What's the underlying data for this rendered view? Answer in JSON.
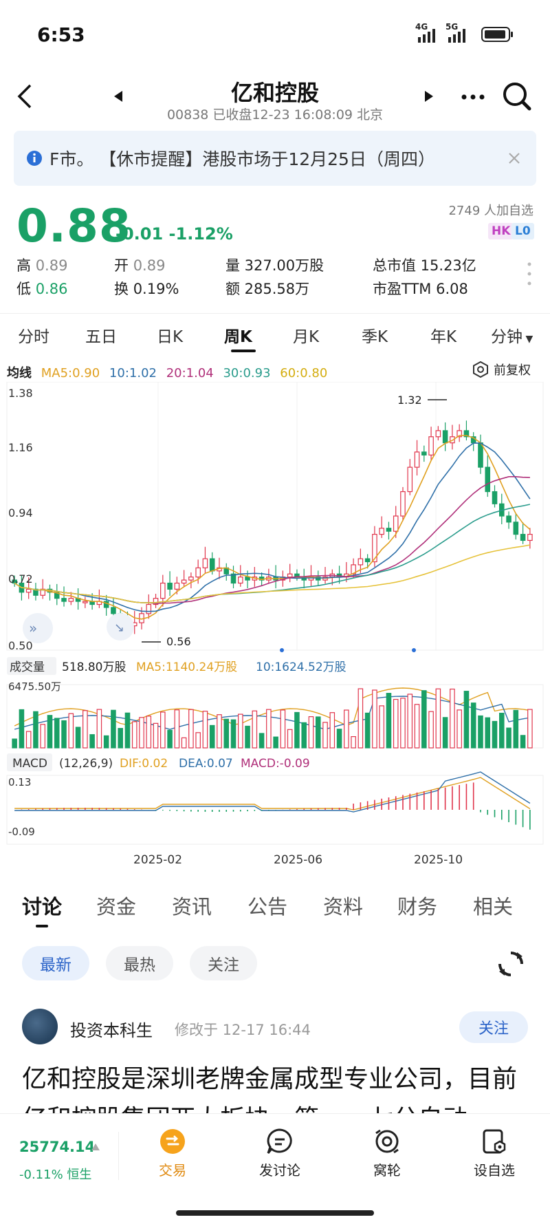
{
  "status_bar": {
    "time": "6:53",
    "net1": "4G",
    "net2": "5G"
  },
  "header": {
    "title": "亿和控股",
    "subtitle": "00838 已收盘12-23 16:08:09 北京"
  },
  "notice": {
    "text": "F市。    【休市提醒】港股市场于12月25日（周四）"
  },
  "quote": {
    "price": "0.88",
    "change": "-0.01 -1.12%",
    "watchers": "2749 人加自选",
    "badge_hk": "HK",
    "badge_l0": "L0",
    "stats": {
      "high_label": "高",
      "high": "0.89",
      "open_label": "开",
      "open": "0.89",
      "volume": "量 327.00万股",
      "market_cap": "总市值 15.23亿",
      "low_label": "低",
      "low": "0.86",
      "turnover_label": "换",
      "turnover": "0.19%",
      "amount": "额 285.58万",
      "pe": "市盈TTM 6.08"
    }
  },
  "kline_tabs": [
    "分时",
    "五日",
    "日K",
    "周K",
    "月K",
    "季K",
    "年K",
    "分钟"
  ],
  "chart": {
    "ma_title": "均线",
    "ma5": "MA5:0.90",
    "ma10": "10:1.02",
    "ma20": "20:1.04",
    "ma30": "30:0.93",
    "ma60": "60:0.80",
    "adjust": "前复权",
    "y_ticks": [
      "1.38",
      "1.16",
      "0.94",
      "0.72",
      "0.50"
    ],
    "max_label": "1.32",
    "min_label": "0.56",
    "volume_title": "成交量",
    "volume_value": "518.80万股",
    "vol_ma5": "MA5:1140.24万股",
    "vol_ma10": "10:1624.52万股",
    "volume_max": "6475.50万",
    "macd_title": "MACD",
    "macd_params": "(12,26,9)",
    "dif": "DIF:0.02",
    "dea": "DEA:0.07",
    "macd": "MACD:-0.09",
    "macd_top": "0.13",
    "macd_bottom": "-0.09",
    "x_labels": [
      "2025-02",
      "2025-06",
      "2025-10"
    ],
    "colors": {
      "up": "#e0344b",
      "down": "#1aa066",
      "ma5": "#e0a020",
      "ma10": "#2e6fa8",
      "ma20": "#b0307a",
      "ma30": "#2a9c8c",
      "ma60": "#e6c23a"
    }
  },
  "chart_data": {
    "type": "candlestick",
    "ylim": [
      0.5,
      1.38
    ],
    "y_ticks": [
      1.38,
      1.16,
      0.94,
      0.72,
      0.5
    ],
    "x_labels": [
      "2025-02",
      "2025-06",
      "2025-10"
    ],
    "high": 1.32,
    "low": 0.56,
    "close": [
      0.72,
      0.69,
      0.7,
      0.68,
      0.7,
      0.69,
      0.67,
      0.66,
      0.67,
      0.66,
      0.66,
      0.65,
      0.66,
      0.64,
      0.62,
      0.6,
      0.58,
      0.59,
      0.62,
      0.65,
      0.67,
      0.72,
      0.7,
      0.72,
      0.73,
      0.74,
      0.77,
      0.8,
      0.76,
      0.77,
      0.75,
      0.72,
      0.74,
      0.73,
      0.74,
      0.73,
      0.74,
      0.73,
      0.74,
      0.75,
      0.74,
      0.73,
      0.74,
      0.73,
      0.74,
      0.75,
      0.74,
      0.75,
      0.78,
      0.8,
      0.79,
      0.88,
      0.9,
      0.89,
      0.94,
      1.02,
      1.1,
      1.15,
      1.14,
      1.2,
      1.22,
      1.18,
      1.2,
      1.22,
      1.2,
      1.18,
      1.1,
      1.02,
      0.98,
      0.94,
      0.92,
      0.88,
      0.86,
      0.88
    ],
    "volume_max": 6475.5
  },
  "discussion": {
    "tabs": [
      "讨论",
      "资金",
      "资讯",
      "公告",
      "资料",
      "财务",
      "相关"
    ],
    "filters": [
      "最新",
      "最热",
      "关注"
    ],
    "post": {
      "author": "投资本科生",
      "time": "修改于 12-17 16:44",
      "follow": "关注",
      "text": "亿和控股是深圳老牌金属成型专业公司，目前亿和控股集团两大板块，第一，七分自动"
    }
  },
  "bottom_bar": {
    "index_value": "25774.14",
    "index_change": "-0.11% 恒生",
    "items": [
      "交易",
      "发讨论",
      "窝轮",
      "设自选"
    ]
  }
}
